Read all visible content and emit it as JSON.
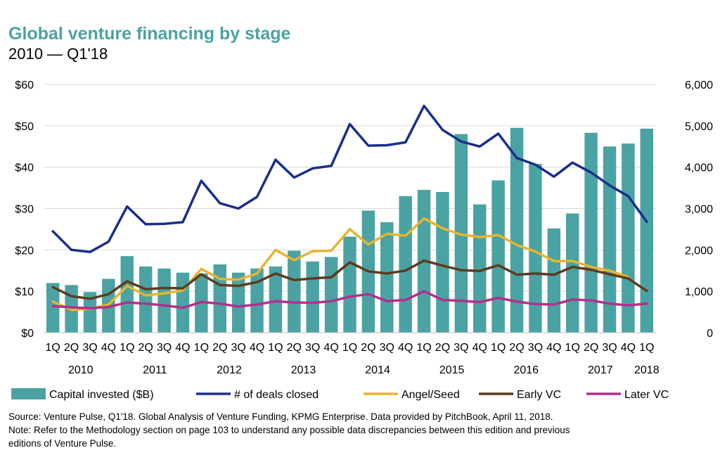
{
  "title": "Global venture financing by stage",
  "subtitle": "2010 — Q1'18",
  "chart_data": {
    "type": "bar",
    "categories": [
      "1Q",
      "2Q",
      "3Q",
      "4Q",
      "1Q",
      "2Q",
      "3Q",
      "4Q",
      "1Q",
      "2Q",
      "3Q",
      "4Q",
      "1Q",
      "2Q",
      "3Q",
      "4Q",
      "1Q",
      "2Q",
      "3Q",
      "4Q",
      "1Q",
      "2Q",
      "3Q",
      "4Q",
      "1Q",
      "2Q",
      "3Q",
      "4Q",
      "1Q",
      "2Q",
      "3Q",
      "4Q",
      "1Q"
    ],
    "years": [
      "2010",
      "2011",
      "2012",
      "2013",
      "2014",
      "2015",
      "2016",
      "2017",
      "2018"
    ],
    "y_left": {
      "ticks": [
        "$0",
        "$10",
        "$20",
        "$30",
        "$40",
        "$50",
        "$60"
      ],
      "ylim": [
        0,
        60
      ]
    },
    "y_right": {
      "ticks": [
        "0",
        "1,000",
        "2,000",
        "3,000",
        "4,000",
        "5,000",
        "6,000"
      ],
      "ylim": [
        0,
        6000
      ]
    },
    "grid": true,
    "legend_position": "bottom",
    "series": [
      {
        "name": "Capital invested ($B)",
        "type": "bar",
        "axis": "left",
        "color": "#4aa3a2",
        "values": [
          12.0,
          11.5,
          9.8,
          13.0,
          18.5,
          16.0,
          15.5,
          14.5,
          14.3,
          16.5,
          14.5,
          15.5,
          16.0,
          19.8,
          17.2,
          18.3,
          23.2,
          29.5,
          26.7,
          33.0,
          34.5,
          34.0,
          48.0,
          31.0,
          36.8,
          49.5,
          40.8,
          25.2,
          28.8,
          48.3,
          45.0,
          45.7,
          49.3
        ]
      },
      {
        "name": "# of deals closed",
        "type": "line",
        "axis": "right",
        "color": "#1a2f8c",
        "values": [
          2450,
          2000,
          1950,
          2200,
          3050,
          2620,
          2630,
          2670,
          3670,
          3130,
          3000,
          3280,
          4180,
          3750,
          3970,
          4030,
          5040,
          4520,
          4530,
          4600,
          5480,
          4900,
          4620,
          4500,
          4810,
          4220,
          4060,
          3770,
          4110,
          3870,
          3560,
          3300,
          2680
        ]
      },
      {
        "name": "Angel/Seed",
        "type": "line",
        "axis": "right",
        "color": "#e8b430",
        "values": [
          750,
          550,
          580,
          680,
          1130,
          900,
          950,
          1020,
          1540,
          1300,
          1280,
          1430,
          2000,
          1750,
          1970,
          1980,
          2500,
          2130,
          2390,
          2340,
          2760,
          2520,
          2370,
          2310,
          2360,
          2120,
          1960,
          1730,
          1730,
          1590,
          1500,
          1350,
          null
        ]
      },
      {
        "name": "Early VC",
        "type": "line",
        "axis": "right",
        "color": "#5e3b1f",
        "values": [
          1100,
          880,
          820,
          930,
          1240,
          1050,
          1080,
          1070,
          1410,
          1150,
          1130,
          1220,
          1430,
          1270,
          1310,
          1340,
          1700,
          1480,
          1430,
          1500,
          1740,
          1620,
          1510,
          1490,
          1630,
          1400,
          1430,
          1400,
          1590,
          1520,
          1410,
          1310,
          1010
        ]
      },
      {
        "name": "Later VC",
        "type": "line",
        "axis": "right",
        "color": "#b52e8c",
        "values": [
          640,
          610,
          590,
          620,
          730,
          700,
          660,
          600,
          740,
          700,
          630,
          680,
          760,
          730,
          720,
          760,
          870,
          930,
          760,
          790,
          1000,
          790,
          770,
          740,
          840,
          750,
          690,
          680,
          800,
          780,
          700,
          660,
          700
        ]
      }
    ]
  },
  "source": "Source: Venture Pulse, Q1'18. Global Analysis of Venture Funding, KPMG Enterprise. Data provided by PitchBook, April 11, 2018.",
  "note_line1": "Note: Refer to the Methodology section on page 103 to understand any possible data discrepancies between this edition and previous",
  "note_line2": "editions of Venture Pulse."
}
